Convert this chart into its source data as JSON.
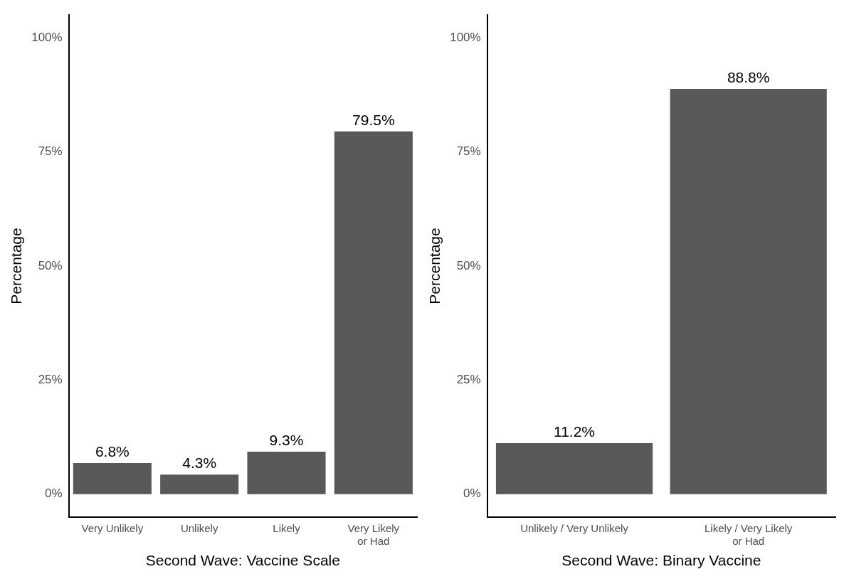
{
  "chart_data": [
    {
      "type": "bar",
      "xlabel": "Second Wave: Vaccine Scale",
      "ylabel": "Percentage",
      "categories": [
        "Very Unlikely",
        "Unlikely",
        "Likely",
        "Very Likely\nor Had"
      ],
      "values": [
        6.8,
        4.3,
        9.3,
        79.5
      ],
      "value_labels": [
        "6.8%",
        "4.3%",
        "9.3%",
        "79.5%"
      ],
      "color": "#595959",
      "ylim": [
        -5,
        105
      ],
      "yticks": [
        {
          "value": 0,
          "label": "0%"
        },
        {
          "value": 25,
          "label": "25%"
        },
        {
          "value": 50,
          "label": "50%"
        },
        {
          "value": 75,
          "label": "75%"
        },
        {
          "value": 100,
          "label": "100%"
        }
      ],
      "grid": false,
      "legend": false
    },
    {
      "type": "bar",
      "xlabel": "Second Wave: Binary Vaccine",
      "ylabel": "Percentage",
      "categories": [
        "Unlikely / Very Unlikely",
        "Likely / Very Likely\nor Had"
      ],
      "values": [
        11.2,
        88.8
      ],
      "value_labels": [
        "11.2%",
        "88.8%"
      ],
      "color": "#595959",
      "ylim": [
        -5,
        105
      ],
      "yticks": [
        {
          "value": 0,
          "label": "0%"
        },
        {
          "value": 25,
          "label": "25%"
        },
        {
          "value": 50,
          "label": "50%"
        },
        {
          "value": 75,
          "label": "75%"
        },
        {
          "value": 100,
          "label": "100%"
        }
      ],
      "grid": false,
      "legend": false
    }
  ]
}
